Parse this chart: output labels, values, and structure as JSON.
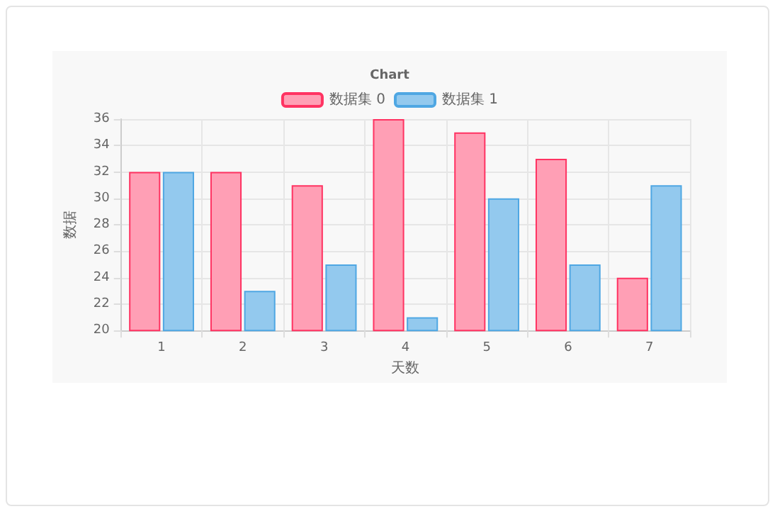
{
  "chart_data": {
    "type": "bar",
    "title": "Chart",
    "xlabel": "天数",
    "ylabel": "数据",
    "categories": [
      "1",
      "2",
      "3",
      "4",
      "5",
      "6",
      "7"
    ],
    "series": [
      {
        "name": "数据集 0",
        "color": "#ff9fb5",
        "values": [
          32,
          32,
          31,
          36,
          35,
          33,
          24
        ]
      },
      {
        "name": "数据集 1",
        "color": "#93c9ee",
        "values": [
          32,
          23,
          25,
          21,
          30,
          25,
          31
        ]
      }
    ],
    "ylim": [
      20,
      36
    ],
    "yticks": [
      20,
      22,
      24,
      26,
      28,
      30,
      32,
      34,
      36
    ],
    "grid": true,
    "legend": "top"
  }
}
